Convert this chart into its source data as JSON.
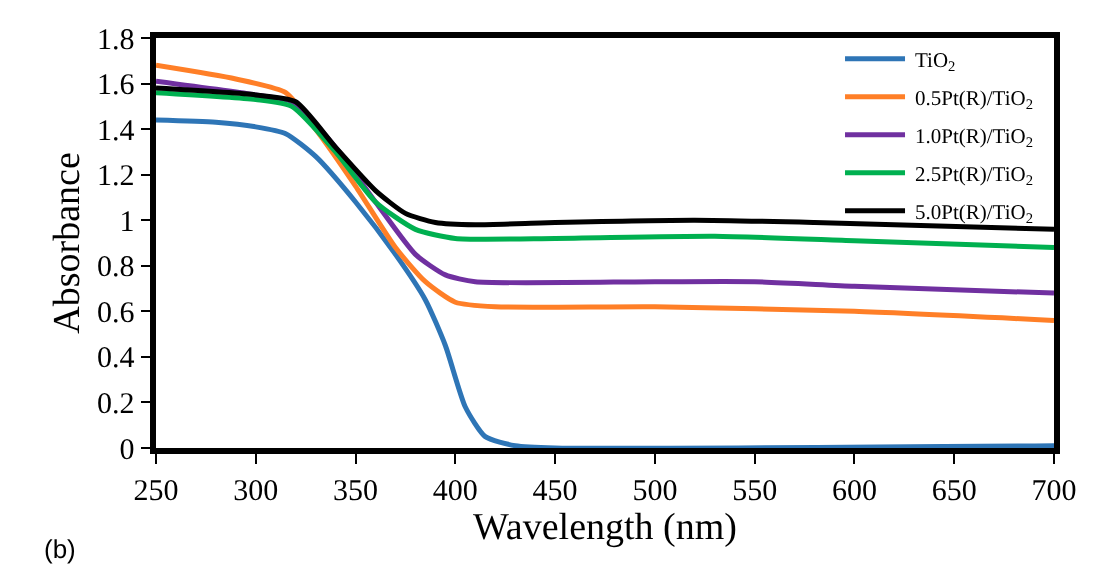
{
  "chart_data": {
    "type": "line",
    "xlabel": "Wavelength (nm)",
    "ylabel": "Absorbance",
    "annotations": [
      "(b)"
    ],
    "xlim": [
      250,
      700
    ],
    "xticks": [
      250,
      300,
      350,
      400,
      450,
      500,
      550,
      600,
      650,
      700
    ],
    "ylim": [
      0,
      1.8
    ],
    "yticks": [
      0,
      0.2,
      0.4,
      0.6,
      0.8,
      1,
      1.2,
      1.4,
      1.6,
      1.8
    ],
    "legend": "top right",
    "marker": "none",
    "line_style": "solid",
    "series": [
      {
        "name": "TiO$_{2}$",
        "color": "#2e75b6",
        "x": [
          250,
          280,
          300,
          315,
          330,
          350,
          370,
          385,
          395,
          405,
          415,
          430,
          450,
          700
        ],
        "values": [
          1.44,
          1.43,
          1.41,
          1.38,
          1.28,
          1.08,
          0.85,
          0.65,
          0.45,
          0.18,
          0.05,
          0.01,
          0.0,
          0.01
        ]
      },
      {
        "name": "0.5Pt(R)/TiO$_{2}$",
        "color": "#ff7f27",
        "x": [
          250,
          290,
          315,
          330,
          350,
          370,
          385,
          400,
          420,
          500,
          600,
          700
        ],
        "values": [
          1.68,
          1.62,
          1.56,
          1.4,
          1.15,
          0.88,
          0.73,
          0.64,
          0.62,
          0.62,
          0.6,
          0.56
        ]
      },
      {
        "name": "1.0Pt(R)/TiO$_{2}$",
        "color": "#7030a0",
        "x": [
          250,
          300,
          318,
          340,
          360,
          380,
          395,
          410,
          500,
          550,
          600,
          700
        ],
        "values": [
          1.61,
          1.55,
          1.52,
          1.32,
          1.08,
          0.85,
          0.76,
          0.73,
          0.73,
          0.73,
          0.71,
          0.68
        ]
      },
      {
        "name": "2.5Pt(R)/TiO$_{2}$",
        "color": "#00b050",
        "x": [
          250,
          300,
          318,
          340,
          360,
          380,
          400,
          450,
          530,
          600,
          700
        ],
        "values": [
          1.56,
          1.53,
          1.5,
          1.3,
          1.08,
          0.96,
          0.92,
          0.92,
          0.93,
          0.91,
          0.88
        ]
      },
      {
        "name": "5.0Pt(R)/TiO$_{2}$",
        "color": "#000000",
        "x": [
          250,
          300,
          320,
          340,
          360,
          375,
          390,
          410,
          450,
          520,
          580,
          700
        ],
        "values": [
          1.58,
          1.55,
          1.52,
          1.32,
          1.13,
          1.03,
          0.99,
          0.98,
          0.99,
          1.0,
          0.99,
          0.96
        ]
      }
    ]
  }
}
